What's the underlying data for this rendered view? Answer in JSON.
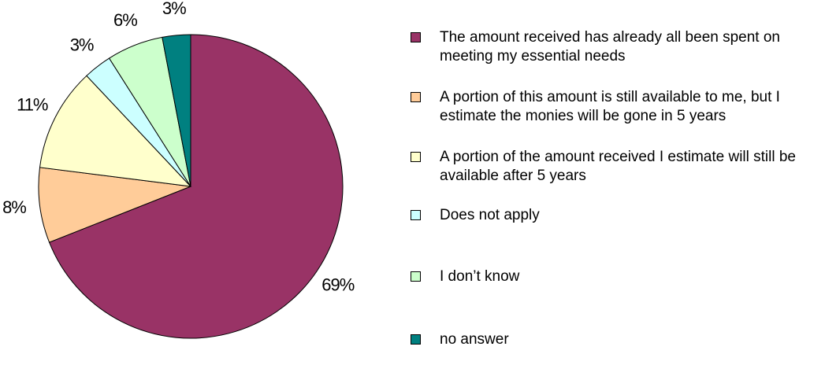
{
  "chart_data": {
    "type": "pie",
    "series": [
      {
        "name": "The amount received has already all been spent on meeting my essential needs",
        "color": "#993366",
        "values": [
          69
        ],
        "value_labels": [
          "69%"
        ]
      },
      {
        "name": "A portion of this amount is still available to me, but I estimate the monies will be gone in 5 years",
        "color": "#FFCC99",
        "values": [
          8
        ],
        "value_labels": [
          "8%"
        ]
      },
      {
        "name": "A portion of the amount received I estimate will still be available after 5 years",
        "color": "#FFFFCC",
        "values": [
          11
        ],
        "value_labels": [
          "11%"
        ]
      },
      {
        "name": "Does not apply",
        "color": "#CCFFFF",
        "values": [
          3
        ],
        "value_labels": [
          "3%"
        ]
      },
      {
        "name": "I don’t know",
        "color": "#CCFFCC",
        "values": [
          6
        ],
        "value_labels": [
          "6%"
        ]
      },
      {
        "name": "no answer",
        "color": "#008080",
        "values": [
          3
        ],
        "value_labels": [
          "3%"
        ]
      }
    ],
    "legend": "right"
  }
}
